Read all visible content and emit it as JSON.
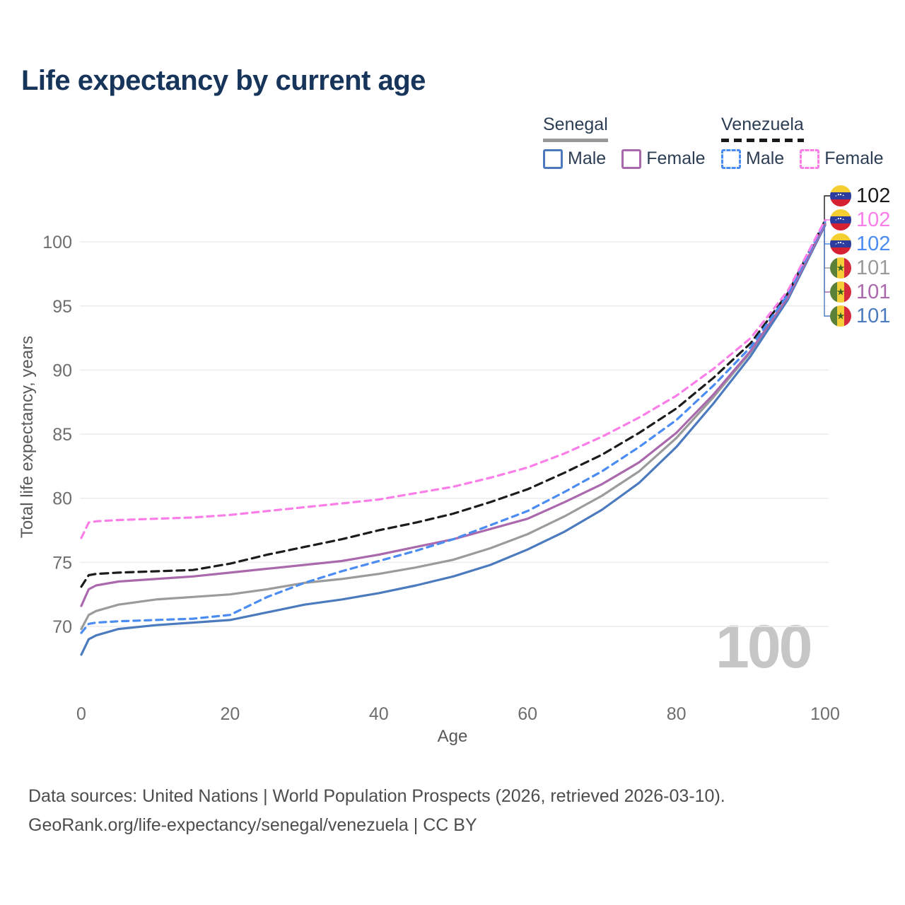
{
  "title": "Life expectancy by current age",
  "legend": {
    "groups": [
      {
        "country": "Senegal",
        "line_style": "solid",
        "underline_color": "#999999",
        "items": [
          {
            "label": "Male",
            "color": "#4b7bbe",
            "dashed": false
          },
          {
            "label": "Female",
            "color": "#ab69ad",
            "dashed": false
          }
        ]
      },
      {
        "country": "Venezuela",
        "line_style": "dashed",
        "underline_color": "#1a1a1a",
        "items": [
          {
            "label": "Male",
            "color": "#4a8cf2",
            "dashed": true
          },
          {
            "label": "Female",
            "color": "#fb7de8",
            "dashed": true
          }
        ]
      }
    ]
  },
  "watermark_age": "100",
  "end_labels": [
    {
      "flag": "venezuela",
      "value": "102",
      "color": "#1a1a1a"
    },
    {
      "flag": "venezuela",
      "value": "102",
      "color": "#fb7de8"
    },
    {
      "flag": "venezuela",
      "value": "102",
      "color": "#4a8cf2"
    },
    {
      "flag": "senegal",
      "value": "101",
      "color": "#9a9a9a"
    },
    {
      "flag": "senegal",
      "value": "101",
      "color": "#ab69ad"
    },
    {
      "flag": "senegal",
      "value": "101",
      "color": "#4b7bbe"
    }
  ],
  "chart_data": {
    "type": "line",
    "title": "Life expectancy by current age",
    "xlabel": "Age",
    "ylabel": "Total life expectancy, years",
    "xticks": [
      0,
      20,
      40,
      60,
      80,
      100
    ],
    "yticks": [
      70,
      75,
      80,
      85,
      90,
      95,
      100
    ],
    "xlim": [
      0,
      100
    ],
    "ylim": [
      65.5,
      103
    ],
    "grid": true,
    "legend_position": "top-right",
    "x": [
      0,
      1,
      2,
      5,
      10,
      15,
      20,
      25,
      30,
      35,
      40,
      45,
      50,
      55,
      60,
      65,
      70,
      75,
      80,
      85,
      90,
      95,
      100
    ],
    "series": [
      {
        "id": "senegal_total",
        "name": "Senegal Both sexes",
        "color": "#9b9b9b",
        "line_style": "solid",
        "values": [
          69.8,
          70.9,
          71.2,
          71.7,
          72.1,
          72.3,
          72.5,
          72.9,
          73.4,
          73.7,
          74.1,
          74.6,
          75.2,
          76.1,
          77.2,
          78.6,
          80.2,
          82.1,
          84.7,
          87.9,
          91.4,
          95.6,
          101.45
        ]
      },
      {
        "id": "senegal_male",
        "name": "Senegal Male",
        "color": "#4b7bbe",
        "line_style": "solid",
        "values": [
          67.8,
          69.0,
          69.3,
          69.8,
          70.1,
          70.3,
          70.5,
          71.1,
          71.7,
          72.1,
          72.6,
          73.2,
          73.9,
          74.8,
          76.0,
          77.4,
          79.1,
          81.2,
          84.0,
          87.4,
          91.1,
          95.5,
          101.3
        ]
      },
      {
        "id": "senegal_female",
        "name": "Senegal Female",
        "color": "#ab69ad",
        "line_style": "solid",
        "values": [
          71.6,
          72.9,
          73.2,
          73.5,
          73.7,
          73.9,
          74.2,
          74.5,
          74.8,
          75.1,
          75.6,
          76.2,
          76.8,
          77.6,
          78.4,
          79.7,
          81.1,
          82.8,
          85.1,
          88.1,
          91.5,
          95.7,
          101.4
        ]
      },
      {
        "id": "venezuela_total",
        "name": "Venezuela Both sexes",
        "color": "#1c1c1c",
        "line_style": "dashed",
        "values": [
          73.1,
          74.0,
          74.1,
          74.2,
          74.3,
          74.4,
          74.9,
          75.6,
          76.2,
          76.8,
          77.5,
          78.1,
          78.8,
          79.7,
          80.7,
          82.0,
          83.4,
          85.1,
          87.0,
          89.4,
          92.1,
          96.0,
          101.68
        ]
      },
      {
        "id": "venezuela_male",
        "name": "Venezuela Male",
        "color": "#4a8cf2",
        "line_style": "dashed",
        "values": [
          69.5,
          70.2,
          70.3,
          70.4,
          70.5,
          70.6,
          70.9,
          72.3,
          73.4,
          74.3,
          75.1,
          75.9,
          76.8,
          77.9,
          79.0,
          80.5,
          82.1,
          84.0,
          86.1,
          88.8,
          91.8,
          95.9,
          101.6
        ]
      },
      {
        "id": "venezuela_female",
        "name": "Venezuela Female",
        "color": "#fb7de8",
        "line_style": "dashed",
        "values": [
          76.9,
          78.1,
          78.2,
          78.3,
          78.4,
          78.5,
          78.7,
          79.0,
          79.3,
          79.6,
          79.9,
          80.4,
          80.9,
          81.6,
          82.4,
          83.5,
          84.8,
          86.3,
          88.0,
          90.1,
          92.5,
          96.2,
          101.7
        ]
      }
    ],
    "end_label_order": [
      "venezuela_total",
      "venezuela_female",
      "venezuela_male",
      "senegal_total",
      "senegal_female",
      "senegal_male"
    ]
  },
  "footer": {
    "line1": "Data sources: United Nations | World Population Prospects (2026, retrieved 2026-03-10).",
    "line2": "GeoRank.org/life-expectancy/senegal/venezuela | CC BY"
  }
}
